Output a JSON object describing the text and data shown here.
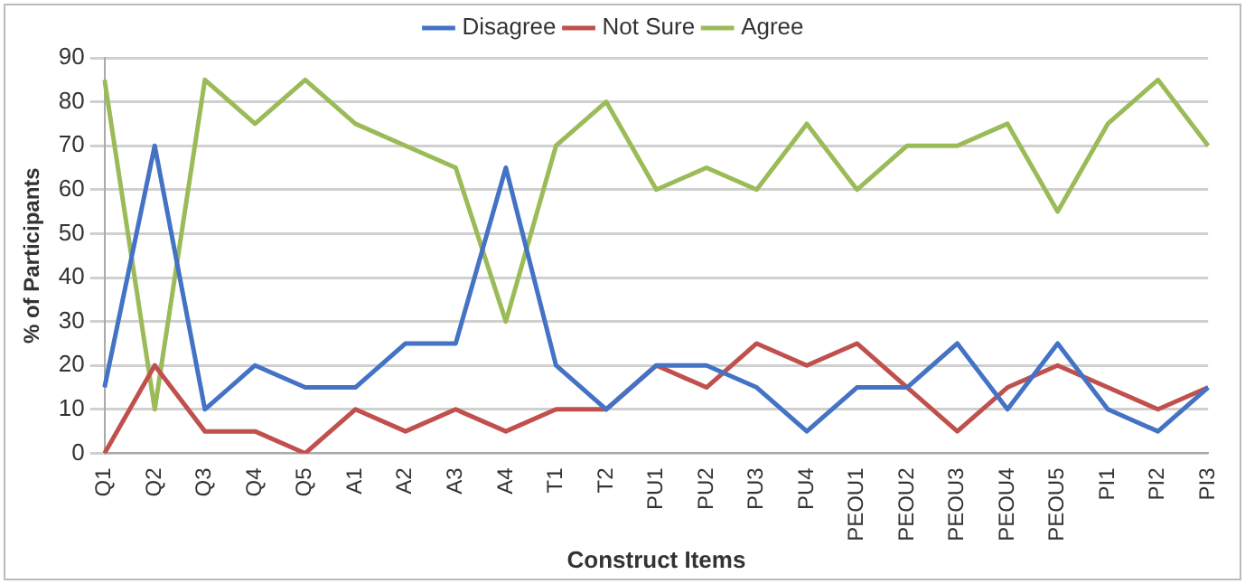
{
  "chart_data": {
    "type": "line",
    "xlabel": "Construct Items",
    "ylabel": "% of Participants",
    "categories": [
      "Q1",
      "Q2",
      "Q3",
      "Q4",
      "Q5",
      "A1",
      "A2",
      "A3",
      "A4",
      "T1",
      "T2",
      "PU1",
      "PU2",
      "PU3",
      "PU4",
      "PEOU1",
      "PEOU2",
      "PEOU3",
      "PEOU4",
      "PEOU5",
      "PI1",
      "PI2",
      "PI3"
    ],
    "series": [
      {
        "name": "Disagree",
        "color": "#4472c4",
        "values": [
          15,
          70,
          10,
          20,
          15,
          15,
          25,
          25,
          65,
          20,
          10,
          20,
          20,
          15,
          5,
          15,
          15,
          25,
          10,
          25,
          10,
          5,
          15
        ]
      },
      {
        "name": "Not Sure",
        "color": "#c0504d",
        "values": [
          0,
          20,
          5,
          5,
          0,
          10,
          5,
          10,
          5,
          10,
          10,
          20,
          15,
          25,
          20,
          25,
          15,
          5,
          15,
          20,
          15,
          10,
          15
        ]
      },
      {
        "name": "Agree",
        "color": "#9bbb59",
        "values": [
          85,
          10,
          85,
          75,
          85,
          75,
          70,
          65,
          30,
          70,
          80,
          60,
          65,
          60,
          75,
          60,
          70,
          70,
          75,
          55,
          75,
          85,
          70
        ]
      }
    ],
    "ylim": [
      0,
      90
    ],
    "yticks": [
      0,
      10,
      20,
      30,
      40,
      50,
      60,
      70,
      80,
      90
    ],
    "grid": "y",
    "legend": "top",
    "marker": "none",
    "line_style": "solid"
  }
}
